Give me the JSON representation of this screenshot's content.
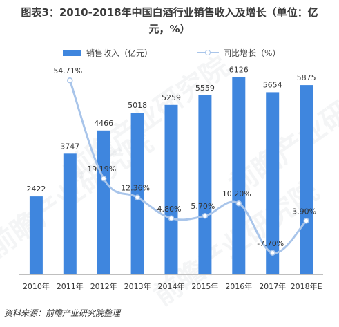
{
  "title_line1": "图表3：2010-2018年中国白酒行业销售收入及增长（单位：亿",
  "title_line2": "元，%）",
  "legend": {
    "bar_label": "销售收入（亿元）",
    "line_label": "同比增长（%）"
  },
  "source": "资料来源：前瞻产业研究院整理",
  "watermark_text": "前瞻产业研究院",
  "colors": {
    "bar": "#3f86de",
    "line": "#a9c5ea",
    "axis": "#bfbfbf",
    "text": "#333333"
  },
  "chart_data": {
    "type": "bar",
    "categories": [
      "2010年",
      "2011年",
      "2012年",
      "2013年",
      "2014年",
      "2015年",
      "2016年",
      "2017年",
      "2018年E"
    ],
    "series": [
      {
        "name": "销售收入（亿元）",
        "type": "bar",
        "values": [
          2422,
          3747,
          4466,
          5018,
          5259,
          5559,
          6126,
          5654,
          5875
        ],
        "labels": [
          "2422",
          "3747",
          "4466",
          "5018",
          "5259",
          "5559",
          "6126",
          "5654",
          "5875"
        ]
      },
      {
        "name": "同比增长（%）",
        "type": "line",
        "values": [
          null,
          54.71,
          19.19,
          12.36,
          4.8,
          5.7,
          10.2,
          -7.7,
          3.9
        ],
        "labels": [
          "",
          "54.71%",
          "19.19%",
          "12.36%",
          "4.80%",
          "5.70%",
          "10.20%",
          "-7.70%",
          "3.90%"
        ]
      }
    ],
    "axes": {
      "bar_axis_range": [
        0,
        6800
      ],
      "line_axis_range": [
        -15,
        60
      ],
      "visible_y_axis": false
    },
    "grid": false,
    "legend_position": "top"
  }
}
